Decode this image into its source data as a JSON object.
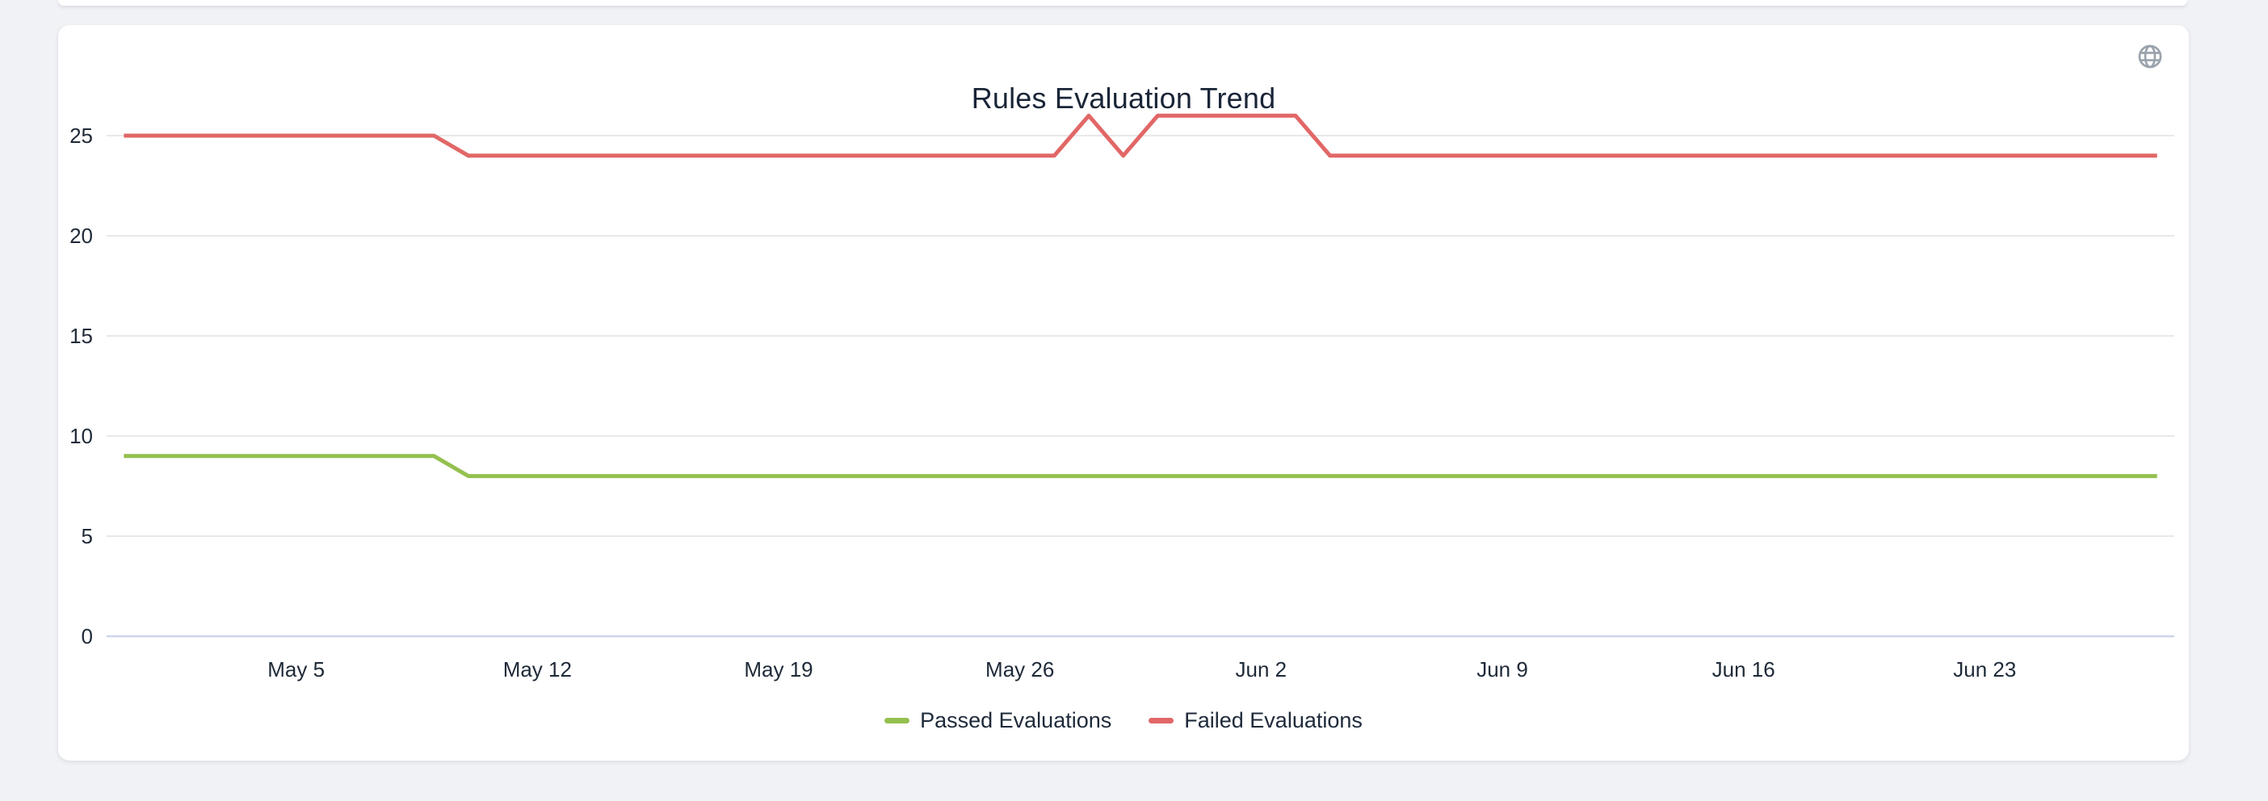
{
  "card": {
    "title": "Rules Evaluation Trend",
    "globe_icon": "globe-icon"
  },
  "colors": {
    "passed_line": "#94c04f",
    "failed_line": "#e26767",
    "gridline": "#e8e8e8",
    "zero_axis_line": "#ccd6eb",
    "axis_text": "#1f2a38",
    "title_text": "#1a2538",
    "card_background": "#ffffff",
    "page_background": "#f1f2f6",
    "globe_icon": "#9aa2ac"
  },
  "chart_data": {
    "type": "line",
    "title": "Rules Evaluation Trend",
    "xlabel": "",
    "ylabel": "",
    "ylim": [
      0,
      26
    ],
    "grid": true,
    "legend_position": "bottom",
    "x": [
      "Apr 30",
      "May 1",
      "May 2",
      "May 3",
      "May 4",
      "May 5",
      "May 6",
      "May 7",
      "May 8",
      "May 9",
      "May 10",
      "May 11",
      "May 12",
      "May 13",
      "May 14",
      "May 15",
      "May 16",
      "May 17",
      "May 18",
      "May 19",
      "May 20",
      "May 21",
      "May 22",
      "May 23",
      "May 24",
      "May 25",
      "May 26",
      "May 27",
      "May 28",
      "May 29",
      "May 30",
      "May 31",
      "Jun 1",
      "Jun 2",
      "Jun 3",
      "Jun 4",
      "Jun 5",
      "Jun 6",
      "Jun 7",
      "Jun 8",
      "Jun 9",
      "Jun 10",
      "Jun 11",
      "Jun 12",
      "Jun 13",
      "Jun 14",
      "Jun 15",
      "Jun 16",
      "Jun 17",
      "Jun 18",
      "Jun 19",
      "Jun 20",
      "Jun 21",
      "Jun 22",
      "Jun 23",
      "Jun 24",
      "Jun 25",
      "Jun 26",
      "Jun 27",
      "Jun 28"
    ],
    "xticks": [
      {
        "index": 5,
        "label": "May 5"
      },
      {
        "index": 12,
        "label": "May 12"
      },
      {
        "index": 19,
        "label": "May 19"
      },
      {
        "index": 26,
        "label": "May 26"
      },
      {
        "index": 33,
        "label": "Jun 2"
      },
      {
        "index": 40,
        "label": "Jun 9"
      },
      {
        "index": 47,
        "label": "Jun 16"
      },
      {
        "index": 54,
        "label": "Jun 23"
      }
    ],
    "yticks": [
      0,
      5,
      10,
      15,
      20,
      25
    ],
    "series": [
      {
        "name": "Passed Evaluations",
        "color": "#94c04f",
        "values": [
          9,
          9,
          9,
          9,
          9,
          9,
          9,
          9,
          9,
          9,
          8,
          8,
          8,
          8,
          8,
          8,
          8,
          8,
          8,
          8,
          8,
          8,
          8,
          8,
          8,
          8,
          8,
          8,
          8,
          8,
          8,
          8,
          8,
          8,
          8,
          8,
          8,
          8,
          8,
          8,
          8,
          8,
          8,
          8,
          8,
          8,
          8,
          8,
          8,
          8,
          8,
          8,
          8,
          8,
          8,
          8,
          8,
          8,
          8,
          8
        ]
      },
      {
        "name": "Failed Evaluations",
        "color": "#e26767",
        "values": [
          25,
          25,
          25,
          25,
          25,
          25,
          25,
          25,
          25,
          25,
          24,
          24,
          24,
          24,
          24,
          24,
          24,
          24,
          24,
          24,
          24,
          24,
          24,
          24,
          24,
          24,
          24,
          24,
          26,
          24,
          26,
          26,
          26,
          26,
          26,
          24,
          24,
          24,
          24,
          24,
          24,
          24,
          24,
          24,
          24,
          24,
          24,
          24,
          24,
          24,
          24,
          24,
          24,
          24,
          24,
          24,
          24,
          24,
          24,
          24
        ]
      }
    ]
  }
}
